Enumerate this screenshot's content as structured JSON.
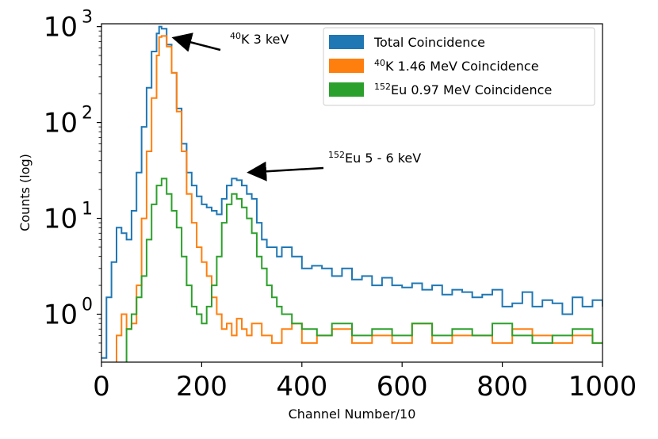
{
  "chart_data": {
    "type": "line",
    "title": "",
    "xlabel": "Channel Number/10",
    "ylabel": "Counts (log)",
    "xlim": [
      0,
      1000
    ],
    "ylim_log10": [
      -0.5,
      3.03
    ],
    "xticks": [
      0,
      200,
      400,
      600,
      800,
      1000
    ],
    "yticks": [
      {
        "base": "10",
        "exp": "0",
        "value": 1
      },
      {
        "base": "10",
        "exp": "1",
        "value": 10
      },
      {
        "base": "10",
        "exp": "2",
        "value": 100
      },
      {
        "base": "10",
        "exp": "3",
        "value": 1000
      }
    ],
    "legend_position": "top-right",
    "series": [
      {
        "name_sup": "",
        "name": "Total Coincidence",
        "color": "#1f77b4",
        "x": [
          0,
          10,
          20,
          30,
          40,
          50,
          60,
          70,
          80,
          90,
          100,
          110,
          115,
          120,
          130,
          140,
          150,
          160,
          170,
          180,
          190,
          200,
          210,
          220,
          230,
          240,
          250,
          260,
          270,
          280,
          290,
          300,
          310,
          320,
          330,
          340,
          350,
          360,
          380,
          400,
          420,
          440,
          460,
          480,
          500,
          520,
          540,
          560,
          580,
          600,
          620,
          640,
          660,
          680,
          700,
          720,
          740,
          760,
          780,
          800,
          820,
          840,
          860,
          880,
          900,
          920,
          940,
          960,
          980,
          1000
        ],
        "y": [
          0.35,
          1.5,
          3.5,
          8,
          7,
          6,
          12,
          30,
          90,
          230,
          550,
          850,
          1000,
          950,
          650,
          330,
          140,
          60,
          30,
          22,
          17,
          14,
          13,
          12,
          11,
          16,
          22,
          26,
          25,
          22,
          18,
          16,
          9,
          6,
          5,
          5,
          4,
          5,
          4,
          3,
          3.2,
          3,
          2.5,
          3,
          2.3,
          2.5,
          2,
          2.4,
          2,
          1.9,
          2.1,
          1.8,
          2,
          1.6,
          1.8,
          1.7,
          1.5,
          1.6,
          1.8,
          1.2,
          1.3,
          1.7,
          1.2,
          1.4,
          1.3,
          1,
          1.5,
          1.2,
          1.4,
          1.2
        ]
      },
      {
        "name_sup": "40",
        "name": "K 1.46 MeV Coincidence",
        "color": "#ff7f0e",
        "x": [
          0,
          20,
          30,
          40,
          50,
          60,
          70,
          80,
          90,
          100,
          110,
          115,
          120,
          130,
          140,
          150,
          160,
          170,
          180,
          190,
          200,
          210,
          220,
          230,
          240,
          250,
          260,
          270,
          280,
          290,
          300,
          320,
          340,
          360,
          380,
          400,
          430,
          460,
          500,
          540,
          580,
          620,
          660,
          700,
          740,
          780,
          820,
          860,
          900,
          940,
          980,
          1000
        ],
        "y": [
          0,
          0,
          0.6,
          1,
          0.7,
          0.8,
          2,
          10,
          50,
          180,
          500,
          780,
          800,
          620,
          330,
          130,
          50,
          18,
          9,
          5,
          3.5,
          2.5,
          1.5,
          1,
          0.7,
          0.8,
          0.6,
          0.9,
          0.7,
          0.6,
          0.8,
          0.6,
          0.5,
          0.7,
          0.8,
          0.5,
          0.6,
          0.7,
          0.5,
          0.6,
          0.5,
          0.8,
          0.5,
          0.6,
          0.6,
          0.5,
          0.7,
          0.6,
          0.5,
          0.6,
          0.5,
          0.5
        ]
      },
      {
        "name_sup": "152",
        "name": "Eu 0.97 MeV Coincidence",
        "color": "#2ca02c",
        "x": [
          0,
          40,
          50,
          60,
          70,
          80,
          90,
          100,
          110,
          120,
          130,
          140,
          150,
          160,
          170,
          180,
          190,
          200,
          210,
          220,
          230,
          240,
          250,
          260,
          270,
          280,
          290,
          300,
          310,
          320,
          330,
          340,
          350,
          360,
          380,
          400,
          430,
          460,
          500,
          540,
          580,
          620,
          660,
          700,
          740,
          780,
          820,
          860,
          900,
          940,
          980,
          1000
        ],
        "y": [
          0,
          0,
          0.7,
          1,
          1.5,
          2.5,
          6,
          14,
          22,
          26,
          18,
          12,
          8,
          4,
          2,
          1.2,
          1,
          0.8,
          1.2,
          2,
          4,
          9,
          14,
          18,
          16,
          13,
          10,
          7,
          4,
          3,
          2,
          1.5,
          1.2,
          1,
          0.8,
          0.7,
          0.6,
          0.8,
          0.6,
          0.7,
          0.6,
          0.8,
          0.6,
          0.7,
          0.6,
          0.8,
          0.6,
          0.5,
          0.6,
          0.7,
          0.5,
          0.5
        ]
      }
    ],
    "annotations": [
      {
        "sup": "40",
        "text": "K 3 keV",
        "target_x": 135,
        "target_y": 700
      },
      {
        "sup": "152",
        "text": "Eu 5 - 6 keV",
        "target_x": 285,
        "target_y": 28
      }
    ]
  }
}
